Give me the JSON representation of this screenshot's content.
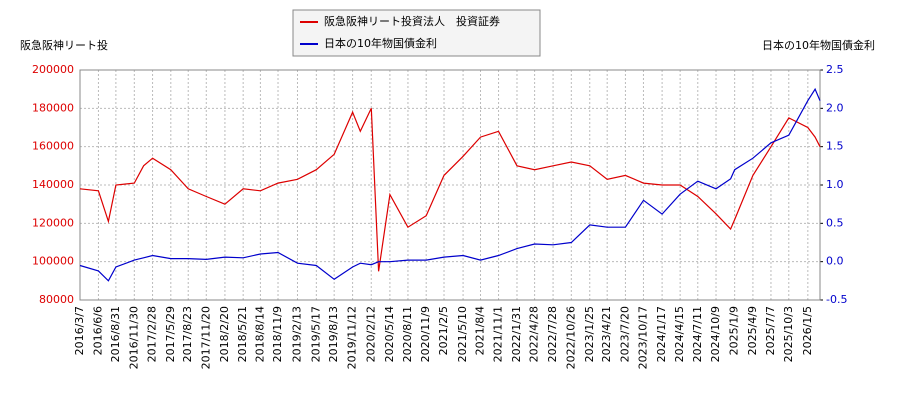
{
  "chart_data": {
    "type": "line",
    "y_label": "阪急阪神リート投",
    "y2_label": "日本の10年物国債金利",
    "x": [
      "2016/3/7",
      "2016/6/6",
      "2016/7/25",
      "2016/8/31",
      "2016/11/30",
      "2017/1/15",
      "2017/2/28",
      "2017/5/29",
      "2017/8/23",
      "2017/11/20",
      "2018/2/20",
      "2018/5/21",
      "2018/8/14",
      "2018/11/9",
      "2019/2/13",
      "2019/5/17",
      "2019/8/13",
      "2019/11/12",
      "2019/12/20",
      "2020/2/12",
      "2020/3/19",
      "2020/5/14",
      "2020/8/11",
      "2020/11/9",
      "2021/2/5",
      "2021/5/10",
      "2021/8/4",
      "2021/11/1",
      "2022/1/31",
      "2022/4/28",
      "2022/7/28",
      "2022/10/26",
      "2023/1/25",
      "2023/4/21",
      "2023/7/20",
      "2023/10/17",
      "2024/1/17",
      "2024/4/15",
      "2024/7/11",
      "2024/10/9",
      "2024/12/20",
      "2025/1/9",
      "2025/4/9",
      "2025/7/7",
      "2025/10/3",
      "2026/1/5",
      "2026/2/10",
      "2026/3/6"
    ],
    "series": [
      {
        "name": "阪急阪神リート投資法人　投資証券",
        "color": "#dd0000",
        "axis": "y",
        "values": [
          138000,
          137000,
          121000,
          140000,
          141000,
          150000,
          154000,
          148000,
          138000,
          134000,
          130000,
          138000,
          137000,
          141000,
          143000,
          148000,
          156000,
          178000,
          168000,
          180000,
          95000,
          135000,
          118000,
          124000,
          145000,
          155000,
          165000,
          168000,
          150000,
          148000,
          150000,
          152000,
          150000,
          143000,
          145000,
          141000,
          140000,
          140000,
          134000,
          125000,
          117000,
          122000,
          145000,
          160000,
          175000,
          170000,
          165000,
          160000
        ]
      },
      {
        "name": "日本の10年物国債金利",
        "color": "#0000cc",
        "axis": "y2",
        "values": [
          -0.05,
          -0.12,
          -0.25,
          -0.07,
          0.02,
          0.05,
          0.08,
          0.04,
          0.04,
          0.03,
          0.06,
          0.05,
          0.1,
          0.12,
          -0.02,
          -0.05,
          -0.23,
          -0.07,
          -0.02,
          -0.04,
          0.0,
          0.0,
          0.02,
          0.02,
          0.06,
          0.08,
          0.02,
          0.08,
          0.17,
          0.23,
          0.22,
          0.25,
          0.48,
          0.45,
          0.45,
          0.8,
          0.62,
          0.88,
          1.05,
          0.95,
          1.08,
          1.2,
          1.35,
          1.55,
          1.65,
          2.1,
          2.25,
          2.1
        ]
      }
    ],
    "xlim": [
      "2016/3/7",
      "2026/3/6"
    ],
    "xticks": [
      "2016/3/7",
      "2016/6/6",
      "2016/8/31",
      "2016/11/30",
      "2017/2/28",
      "2017/5/29",
      "2017/8/23",
      "2017/11/20",
      "2018/2/20",
      "2018/5/21",
      "2018/8/14",
      "2018/11/9",
      "2019/2/13",
      "2019/5/17",
      "2019/8/13",
      "2019/11/12",
      "2020/2/12",
      "2020/5/14",
      "2020/8/11",
      "2020/11/9",
      "2021/2/5",
      "2021/5/10",
      "2021/8/4",
      "2021/11/1",
      "2022/1/31",
      "2022/4/28",
      "2022/7/28",
      "2022/10/26",
      "2023/1/25",
      "2023/4/21",
      "2023/7/20",
      "2023/10/17",
      "2024/1/17",
      "2024/4/15",
      "2024/7/11",
      "2024/10/9",
      "2025/1/9",
      "2025/4/9",
      "2025/7/7",
      "2025/10/3",
      "2026/1/5"
    ],
    "ylim": [
      80000,
      200000
    ],
    "yticks": [
      80000,
      100000,
      120000,
      140000,
      160000,
      180000,
      200000
    ],
    "y2lim": [
      -0.5,
      2.5
    ],
    "y2ticks": [
      -0.5,
      {
        "value": 0,
        "label": "0.0"
      },
      0.5,
      {
        "value": 1,
        "label": "1.0"
      },
      1.5,
      {
        "value": 2,
        "label": "2.0"
      },
      2.5
    ],
    "grid": true
  }
}
